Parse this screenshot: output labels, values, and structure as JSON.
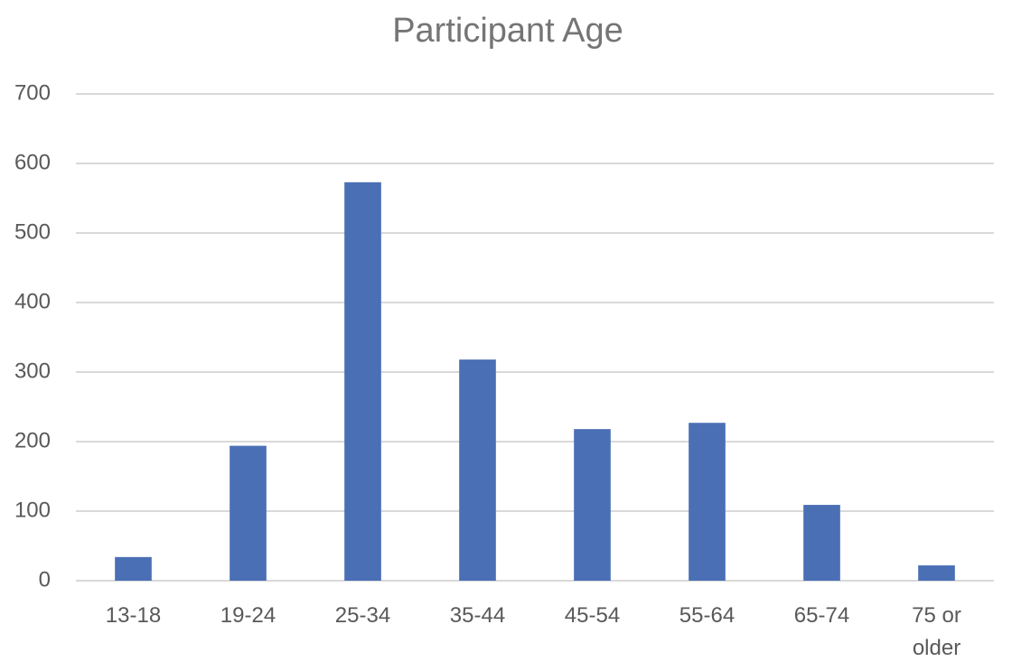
{
  "chart_data": {
    "type": "bar",
    "title": "Participant Age",
    "categories": [
      "13-18",
      "19-24",
      "25-34",
      "35-44",
      "45-54",
      "55-64",
      "65-74",
      "75 or older"
    ],
    "values": [
      34,
      194,
      573,
      318,
      218,
      227,
      109,
      22
    ],
    "color": "#4a6fb5",
    "ylim": [
      0,
      700
    ],
    "yticks": [
      0,
      100,
      200,
      300,
      400,
      500,
      600,
      700
    ],
    "grid": true
  }
}
